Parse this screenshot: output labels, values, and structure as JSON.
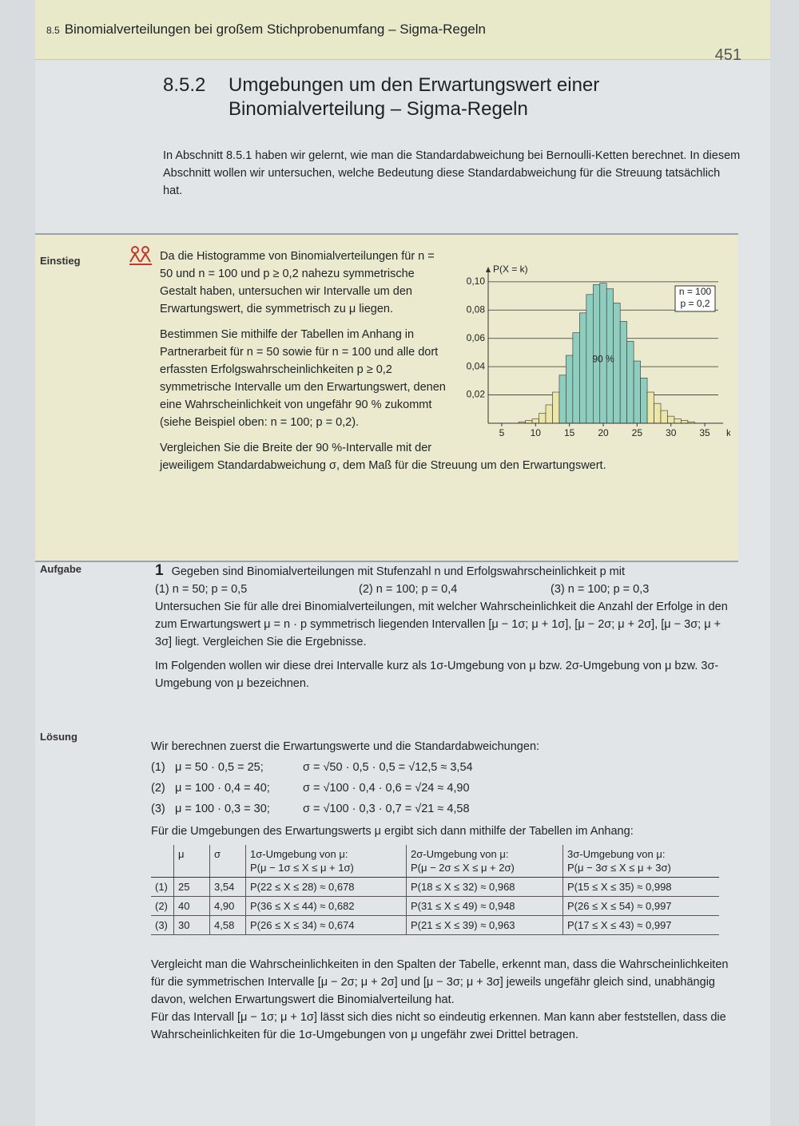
{
  "header": {
    "number": "8.5",
    "title": "Binomialverteilungen bei großem Stichprobenumfang – Sigma-Regeln",
    "page": "451"
  },
  "heading": {
    "number": "8.5.2",
    "title": "Umgebungen um den Erwartungswert einer Binomialverteilung – Sigma-Regeln"
  },
  "intro": "In Abschnitt 8.5.1 haben wir gelernt, wie man die Standardabweichung bei Bernoulli-Ketten berechnet. In diesem Abschnitt wollen wir untersuchen, welche Bedeutung diese Standardabweichung für die Streuung tatsächlich hat.",
  "einstieg": {
    "label": "Einstieg",
    "paragraphs": [
      "Da die Histogramme von Binomialverteilungen für n = 50 und n = 100 und p ≥ 0,2 nahezu symmetrische Gestalt haben, untersuchen wir Intervalle um den Erwartungswert, die symmetrisch zu μ liegen.",
      "Bestimmen Sie mithilfe der Tabellen im Anhang in Partnerarbeit für n = 50 sowie für n = 100 und alle dort erfassten Erfolgswahrscheinlichkeiten p ≥ 0,2 symmetrische Intervalle um den Erwartungswert, denen eine Wahrscheinlichkeit von ungefähr 90 % zukommt (siehe Beispiel oben: n = 100; p = 0,2).",
      "Vergleichen Sie die Breite der 90 %-Intervalle mit der jeweiligem Standardabweichung σ, dem Maß für die Streuung um den Erwartungswert."
    ]
  },
  "chart_data": {
    "type": "bar",
    "y_label": "P(X = k)",
    "x_label": "k",
    "legend": [
      "n = 100",
      "p = 0,2"
    ],
    "annotation": "90 %",
    "x": [
      5,
      6,
      7,
      8,
      9,
      10,
      11,
      12,
      13,
      14,
      15,
      16,
      17,
      18,
      19,
      20,
      21,
      22,
      23,
      24,
      25,
      26,
      27,
      28,
      29,
      30,
      31,
      32,
      33,
      34,
      35
    ],
    "values": [
      0.0,
      0.0,
      0.0,
      0.001,
      0.002,
      0.003,
      0.007,
      0.013,
      0.022,
      0.034,
      0.048,
      0.064,
      0.078,
      0.091,
      0.098,
      0.099,
      0.095,
      0.085,
      0.072,
      0.058,
      0.044,
      0.032,
      0.022,
      0.014,
      0.009,
      0.005,
      0.003,
      0.002,
      0.001,
      0.0,
      0.0
    ],
    "colors": [
      "#ece7a8",
      "#ece7a8",
      "#ece7a8",
      "#ece7a8",
      "#ece7a8",
      "#ece7a8",
      "#ece7a8",
      "#ece7a8",
      "#ece7a8",
      "#8fcdbf",
      "#8fcdbf",
      "#8fcdbf",
      "#8fcdbf",
      "#8fcdbf",
      "#8fcdbf",
      "#8fcdbf",
      "#8fcdbf",
      "#8fcdbf",
      "#8fcdbf",
      "#8fcdbf",
      "#8fcdbf",
      "#8fcdbf",
      "#ece7a8",
      "#ece7a8",
      "#ece7a8",
      "#ece7a8",
      "#ece7a8",
      "#ece7a8",
      "#ece7a8",
      "#ece7a8",
      "#ece7a8"
    ],
    "xlim": [
      3,
      37
    ],
    "ylim": [
      0,
      0.105
    ],
    "xticks": [
      5,
      10,
      15,
      20,
      25,
      30,
      35
    ],
    "yticks": [
      {
        "value": 0.02,
        "label": "0,02"
      },
      {
        "value": 0.04,
        "label": "0,04"
      },
      {
        "value": 0.06,
        "label": "0,06"
      },
      {
        "value": 0.08,
        "label": "0,08"
      },
      {
        "value": 0.1,
        "label": "0,10"
      }
    ],
    "grid": true
  },
  "aufgabe": {
    "label": "Aufgabe",
    "number": "1",
    "text": "Gegeben sind Binomialverteilungen mit Stufenzahl n und Erfolgswahrscheinlichkeit p mit",
    "items": [
      "(1) n = 50; p = 0,5",
      "(2) n = 100; p = 0,4",
      "(3) n = 100; p = 0,3"
    ],
    "paragraphs": [
      "Untersuchen Sie für alle drei Binomialverteilungen, mit welcher Wahrscheinlichkeit die Anzahl der Erfolge in den zum Erwartungswert μ = n · p symmetrisch liegenden Intervallen [μ − 1σ; μ + 1σ], [μ − 2σ; μ + 2σ], [μ − 3σ; μ + 3σ] liegt. Vergleichen Sie die Ergebnisse.",
      "Im Folgenden wollen wir diese drei Intervalle kurz als 1σ-Umgebung von μ bzw. 2σ-Umgebung von μ bzw. 3σ-Umgebung von μ bezeichnen."
    ]
  },
  "loesung": {
    "label": "Lösung",
    "intro": "Wir berechnen zuerst die Erwartungswerte und die Standardabweichungen:",
    "lines": [
      {
        "num": "(1)",
        "mu": "μ = 50 · 0,5 = 25;",
        "sigma": "σ = √50 · 0,5 · 0,5 = √12,5 ≈ 3,54"
      },
      {
        "num": "(2)",
        "mu": "μ = 100 · 0,4 = 40;",
        "sigma": "σ = √100 · 0,4 · 0,6 = √24 ≈ 4,90"
      },
      {
        "num": "(3)",
        "mu": "μ = 100 · 0,3 = 30;",
        "sigma": "σ = √100 · 0,3 · 0,7 = √21 ≈ 4,58"
      }
    ],
    "table_intro": "Für die Umgebungen des Erwartungswerts μ ergibt sich dann mithilfe der Tabellen im Anhang:",
    "table": {
      "header": [
        {
          "title": "μ"
        },
        {
          "title": "σ"
        },
        {
          "title": "1σ-Umgebung von μ:",
          "formula": "P(μ − 1σ ≤ X ≤ μ + 1σ)"
        },
        {
          "title": "2σ-Umgebung von μ:",
          "formula": "P(μ − 2σ ≤ X ≤ μ + 2σ)"
        },
        {
          "title": "3σ-Umgebung von μ:",
          "formula": "P(μ − 3σ ≤ X ≤ μ + 3σ)"
        }
      ],
      "rows": [
        [
          "(1)",
          "25",
          "3,54",
          "P(22 ≤ X ≤ 28) ≈ 0,678",
          "P(18 ≤ X ≤ 32) ≈ 0,968",
          "P(15 ≤ X ≤ 35) ≈ 0,998"
        ],
        [
          "(2)",
          "40",
          "4,90",
          "P(36 ≤ X ≤ 44) ≈ 0,682",
          "P(31 ≤ X ≤ 49) ≈ 0,948",
          "P(26 ≤ X ≤ 54) ≈ 0,997"
        ],
        [
          "(3)",
          "30",
          "4,58",
          "P(26 ≤ X ≤ 34) ≈ 0,674",
          "P(21 ≤ X ≤ 39) ≈ 0,963",
          "P(17 ≤ X ≤ 43) ≈ 0,997"
        ]
      ]
    },
    "paragraphs": [
      "Vergleicht man die Wahrscheinlichkeiten in den Spalten der Tabelle, erkennt man, dass die Wahrscheinlichkeiten für die symmetrischen Intervalle [μ − 2σ; μ + 2σ] und [μ − 3σ; μ + 3σ] jeweils ungefähr gleich sind, unabhängig davon, welchen Erwartungswert die Binomialverteilung hat.",
      "Für das Intervall [μ − 1σ; μ + 1σ] lässt sich dies nicht so eindeutig erkennen. Man kann aber feststellen, dass die Wahrscheinlichkeiten für die 1σ-Umgebungen von μ ungefähr zwei Drittel betragen."
    ]
  }
}
